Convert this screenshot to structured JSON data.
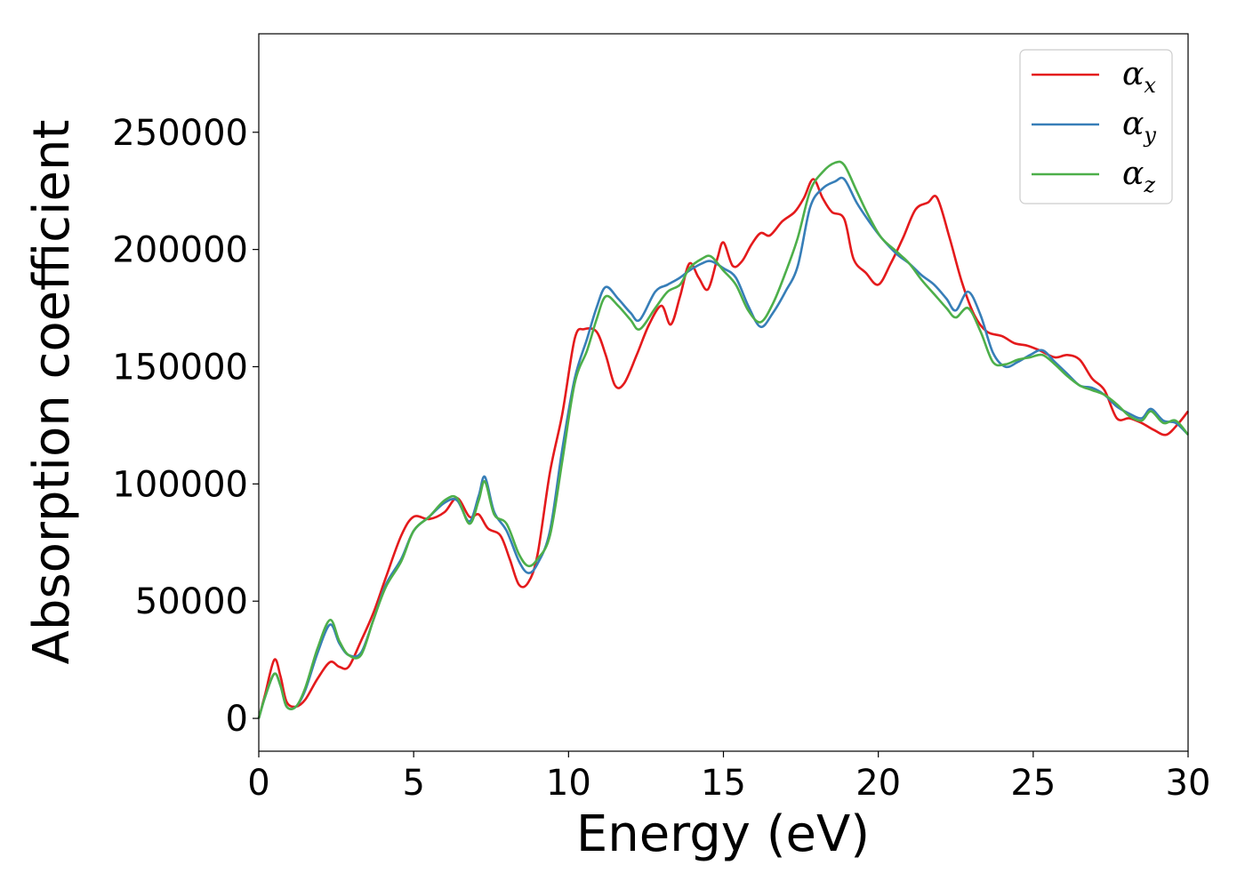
{
  "chart_data": {
    "type": "line",
    "title": "",
    "xlabel": "Energy (eV)",
    "ylabel": "Absorption coefficient",
    "xlim": [
      0,
      30
    ],
    "ylim": [
      -14000,
      292000
    ],
    "xticks": [
      0,
      5,
      10,
      15,
      20,
      25,
      30
    ],
    "yticks": [
      0,
      50000,
      100000,
      150000,
      200000,
      250000
    ],
    "grid": false,
    "legend_position": "top-right",
    "series": [
      {
        "name": "α",
        "sub": "x",
        "color": "#e41a1c",
        "points": [
          [
            0,
            0
          ],
          [
            0.2,
            10000
          ],
          [
            0.5,
            25000
          ],
          [
            0.7,
            18000
          ],
          [
            0.9,
            7000
          ],
          [
            1.2,
            5000
          ],
          [
            1.5,
            8000
          ],
          [
            1.9,
            17000
          ],
          [
            2.3,
            24000
          ],
          [
            2.6,
            22000
          ],
          [
            2.9,
            22000
          ],
          [
            3.3,
            33000
          ],
          [
            3.7,
            45000
          ],
          [
            4.1,
            60000
          ],
          [
            4.6,
            78000
          ],
          [
            5.0,
            86000
          ],
          [
            5.5,
            85000
          ],
          [
            6.0,
            88000
          ],
          [
            6.4,
            94000
          ],
          [
            6.8,
            86000
          ],
          [
            7.1,
            87000
          ],
          [
            7.4,
            81000
          ],
          [
            7.8,
            78000
          ],
          [
            8.1,
            68000
          ],
          [
            8.4,
            57000
          ],
          [
            8.7,
            58000
          ],
          [
            9.0,
            70000
          ],
          [
            9.4,
            105000
          ],
          [
            9.8,
            130000
          ],
          [
            10.2,
            162000
          ],
          [
            10.5,
            166000
          ],
          [
            10.9,
            165000
          ],
          [
            11.2,
            155000
          ],
          [
            11.5,
            142000
          ],
          [
            11.8,
            143000
          ],
          [
            12.2,
            155000
          ],
          [
            12.6,
            168000
          ],
          [
            13.0,
            176000
          ],
          [
            13.3,
            168000
          ],
          [
            13.6,
            180000
          ],
          [
            13.9,
            194000
          ],
          [
            14.2,
            188000
          ],
          [
            14.5,
            183000
          ],
          [
            14.8,
            196000
          ],
          [
            15.0,
            203000
          ],
          [
            15.3,
            193000
          ],
          [
            15.6,
            195000
          ],
          [
            15.9,
            202000
          ],
          [
            16.2,
            207000
          ],
          [
            16.5,
            206000
          ],
          [
            16.9,
            212000
          ],
          [
            17.3,
            216000
          ],
          [
            17.6,
            222000
          ],
          [
            17.9,
            230000
          ],
          [
            18.2,
            222000
          ],
          [
            18.5,
            216000
          ],
          [
            18.9,
            213000
          ],
          [
            19.2,
            196000
          ],
          [
            19.6,
            190000
          ],
          [
            20.0,
            185000
          ],
          [
            20.4,
            194000
          ],
          [
            20.8,
            205000
          ],
          [
            21.2,
            217000
          ],
          [
            21.6,
            220000
          ],
          [
            21.9,
            222000
          ],
          [
            22.3,
            205000
          ],
          [
            22.7,
            186000
          ],
          [
            23.1,
            172000
          ],
          [
            23.5,
            165000
          ],
          [
            24.0,
            163000
          ],
          [
            24.4,
            160000
          ],
          [
            24.8,
            159000
          ],
          [
            25.2,
            157000
          ],
          [
            25.7,
            154000
          ],
          [
            26.1,
            155000
          ],
          [
            26.5,
            153000
          ],
          [
            26.9,
            145000
          ],
          [
            27.3,
            140000
          ],
          [
            27.7,
            128000
          ],
          [
            28.1,
            128000
          ],
          [
            28.5,
            126000
          ],
          [
            28.9,
            123000
          ],
          [
            29.3,
            121000
          ],
          [
            29.7,
            126000
          ],
          [
            30,
            131000
          ]
        ]
      },
      {
        "name": "α",
        "sub": "y",
        "color": "#377eb8",
        "points": [
          [
            0,
            0
          ],
          [
            0.2,
            9000
          ],
          [
            0.5,
            19000
          ],
          [
            0.7,
            14000
          ],
          [
            0.9,
            5000
          ],
          [
            1.2,
            5000
          ],
          [
            1.5,
            12000
          ],
          [
            1.9,
            28000
          ],
          [
            2.3,
            40000
          ],
          [
            2.6,
            32000
          ],
          [
            2.9,
            27000
          ],
          [
            3.3,
            28000
          ],
          [
            3.7,
            42000
          ],
          [
            4.1,
            57000
          ],
          [
            4.6,
            68000
          ],
          [
            5.0,
            80000
          ],
          [
            5.5,
            86000
          ],
          [
            6.0,
            92000
          ],
          [
            6.4,
            93000
          ],
          [
            6.8,
            84000
          ],
          [
            7.1,
            95000
          ],
          [
            7.3,
            103000
          ],
          [
            7.6,
            88000
          ],
          [
            8.0,
            80000
          ],
          [
            8.4,
            67000
          ],
          [
            8.7,
            62000
          ],
          [
            9.0,
            66000
          ],
          [
            9.4,
            80000
          ],
          [
            9.8,
            115000
          ],
          [
            10.2,
            145000
          ],
          [
            10.6,
            162000
          ],
          [
            10.9,
            175000
          ],
          [
            11.2,
            184000
          ],
          [
            11.6,
            179000
          ],
          [
            12.0,
            173000
          ],
          [
            12.3,
            170000
          ],
          [
            12.8,
            182000
          ],
          [
            13.2,
            185000
          ],
          [
            13.6,
            188000
          ],
          [
            13.9,
            191000
          ],
          [
            14.3,
            194000
          ],
          [
            14.6,
            195000
          ],
          [
            15.0,
            192000
          ],
          [
            15.4,
            188000
          ],
          [
            15.8,
            176000
          ],
          [
            16.2,
            167000
          ],
          [
            16.6,
            173000
          ],
          [
            17.0,
            182000
          ],
          [
            17.4,
            193000
          ],
          [
            17.8,
            218000
          ],
          [
            18.2,
            226000
          ],
          [
            18.6,
            229000
          ],
          [
            18.9,
            230000
          ],
          [
            19.3,
            220000
          ],
          [
            19.7,
            212000
          ],
          [
            20.1,
            205000
          ],
          [
            20.6,
            198000
          ],
          [
            21.0,
            194000
          ],
          [
            21.4,
            189000
          ],
          [
            21.8,
            185000
          ],
          [
            22.2,
            179000
          ],
          [
            22.5,
            174000
          ],
          [
            22.9,
            182000
          ],
          [
            23.3,
            172000
          ],
          [
            23.7,
            156000
          ],
          [
            24.1,
            150000
          ],
          [
            24.5,
            152000
          ],
          [
            24.9,
            155000
          ],
          [
            25.3,
            157000
          ],
          [
            25.7,
            152000
          ],
          [
            26.1,
            147000
          ],
          [
            26.5,
            142000
          ],
          [
            26.9,
            141000
          ],
          [
            27.3,
            138000
          ],
          [
            27.7,
            133000
          ],
          [
            28.1,
            130000
          ],
          [
            28.5,
            128000
          ],
          [
            28.8,
            132000
          ],
          [
            29.2,
            127000
          ],
          [
            29.6,
            126000
          ],
          [
            30,
            121000
          ]
        ]
      },
      {
        "name": "α",
        "sub": "z",
        "color": "#4daf4a",
        "points": [
          [
            0,
            0
          ],
          [
            0.2,
            9000
          ],
          [
            0.5,
            19000
          ],
          [
            0.7,
            14000
          ],
          [
            0.9,
            5000
          ],
          [
            1.2,
            5000
          ],
          [
            1.5,
            13000
          ],
          [
            1.9,
            30000
          ],
          [
            2.3,
            42000
          ],
          [
            2.6,
            33000
          ],
          [
            2.9,
            27000
          ],
          [
            3.3,
            27000
          ],
          [
            3.7,
            42000
          ],
          [
            4.1,
            56000
          ],
          [
            4.6,
            67000
          ],
          [
            5.0,
            80000
          ],
          [
            5.5,
            86000
          ],
          [
            6.0,
            93000
          ],
          [
            6.4,
            94000
          ],
          [
            6.8,
            83000
          ],
          [
            7.1,
            93000
          ],
          [
            7.3,
            101000
          ],
          [
            7.6,
            87000
          ],
          [
            8.0,
            83000
          ],
          [
            8.4,
            70000
          ],
          [
            8.7,
            65000
          ],
          [
            9.0,
            68000
          ],
          [
            9.4,
            78000
          ],
          [
            9.8,
            110000
          ],
          [
            10.2,
            143000
          ],
          [
            10.6,
            157000
          ],
          [
            10.9,
            170000
          ],
          [
            11.2,
            180000
          ],
          [
            11.6,
            176000
          ],
          [
            12.0,
            170000
          ],
          [
            12.3,
            166000
          ],
          [
            12.8,
            175000
          ],
          [
            13.2,
            182000
          ],
          [
            13.6,
            185000
          ],
          [
            13.9,
            192000
          ],
          [
            14.3,
            196000
          ],
          [
            14.6,
            197000
          ],
          [
            15.0,
            191000
          ],
          [
            15.4,
            185000
          ],
          [
            15.8,
            174000
          ],
          [
            16.2,
            169000
          ],
          [
            16.6,
            177000
          ],
          [
            17.0,
            190000
          ],
          [
            17.4,
            205000
          ],
          [
            17.8,
            225000
          ],
          [
            18.2,
            233000
          ],
          [
            18.6,
            237000
          ],
          [
            18.9,
            236000
          ],
          [
            19.3,
            225000
          ],
          [
            19.7,
            214000
          ],
          [
            20.1,
            205000
          ],
          [
            20.6,
            199000
          ],
          [
            21.0,
            194000
          ],
          [
            21.4,
            187000
          ],
          [
            21.8,
            181000
          ],
          [
            22.2,
            175000
          ],
          [
            22.5,
            171000
          ],
          [
            22.9,
            175000
          ],
          [
            23.3,
            165000
          ],
          [
            23.7,
            152000
          ],
          [
            24.1,
            151000
          ],
          [
            24.5,
            153000
          ],
          [
            24.9,
            154000
          ],
          [
            25.3,
            155000
          ],
          [
            25.7,
            151000
          ],
          [
            26.1,
            146000
          ],
          [
            26.5,
            142000
          ],
          [
            26.9,
            140000
          ],
          [
            27.3,
            138000
          ],
          [
            27.7,
            134000
          ],
          [
            28.1,
            129000
          ],
          [
            28.5,
            127000
          ],
          [
            28.8,
            131000
          ],
          [
            29.2,
            126000
          ],
          [
            29.6,
            127000
          ],
          [
            30,
            121000
          ]
        ]
      }
    ]
  }
}
